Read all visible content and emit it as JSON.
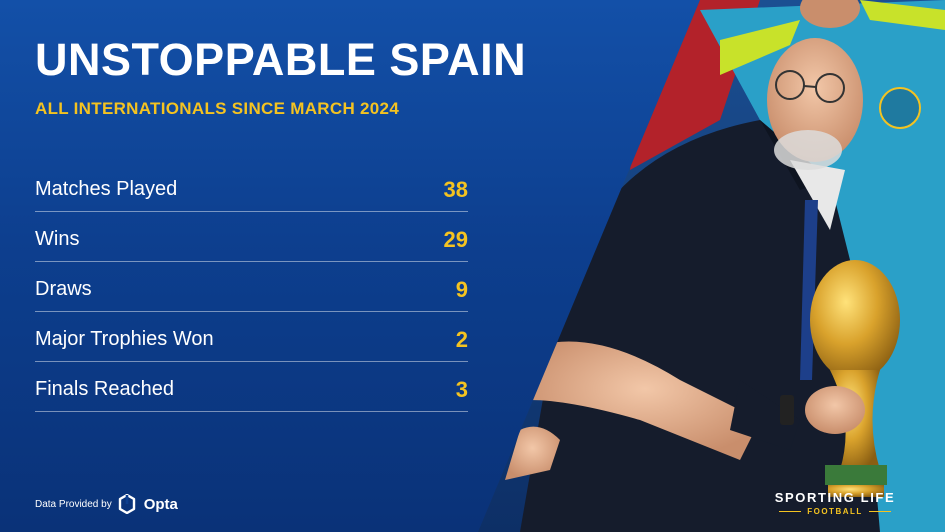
{
  "title": "UNSTOPPABLE SPAIN",
  "subtitle": "ALL INTERNATIONALS SINCE MARCH 2024",
  "stats": [
    {
      "label": "Matches Played",
      "value": "38"
    },
    {
      "label": "Wins",
      "value": "29"
    },
    {
      "label": "Draws",
      "value": "9"
    },
    {
      "label": "Major Trophies Won",
      "value": "2"
    },
    {
      "label": "Finals Reached",
      "value": "3"
    }
  ],
  "footer": {
    "provided_by": "Data Provided by",
    "provider_brand": "Opta",
    "publisher_main": "SPORTING LIFE",
    "publisher_sub": "FOOTBALL"
  },
  "colors": {
    "background": "#0d3f8f",
    "accent": "#f4c321",
    "text": "#ffffff"
  }
}
